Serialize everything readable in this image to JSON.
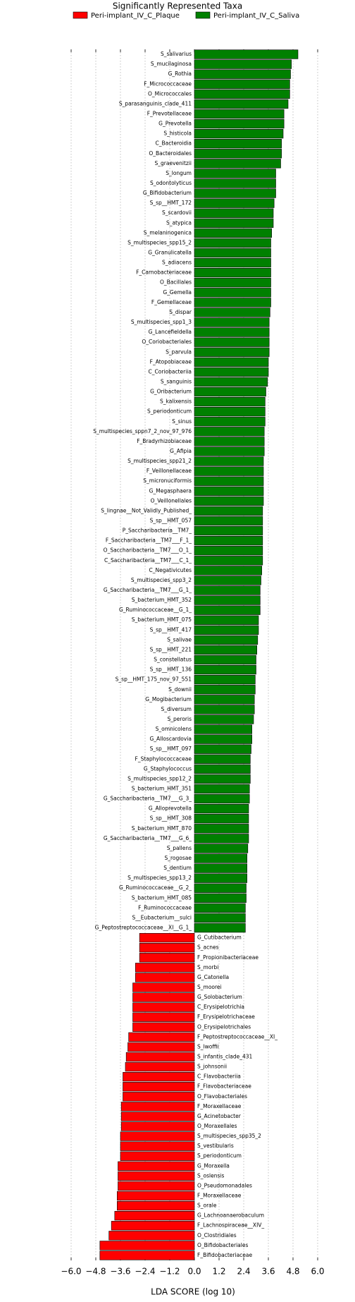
{
  "chart_data": {
    "type": "bar",
    "orientation": "horizontal",
    "title": "Significantly Represented Taxa",
    "x_label": "LDA SCORE (log 10)",
    "xlim": [
      -6.0,
      6.0
    ],
    "xticks": [
      {
        "value": -6.0,
        "label": "−6.0"
      },
      {
        "value": -4.8,
        "label": "−4.8"
      },
      {
        "value": -3.6,
        "label": "−3.6"
      },
      {
        "value": -2.4,
        "label": "−2.4"
      },
      {
        "value": -1.2,
        "label": "−1.2"
      },
      {
        "value": 0,
        "label": "0.0"
      },
      {
        "value": 1.2,
        "label": "1.2"
      },
      {
        "value": 2.4,
        "label": "2.4"
      },
      {
        "value": 3.6,
        "label": "3.6"
      },
      {
        "value": 4.8,
        "label": "4.8"
      },
      {
        "value": 6.0,
        "label": "6.0"
      }
    ],
    "grid": true,
    "legend": "top",
    "series": [
      {
        "name": "Peri-implant_IV_C_Plaque",
        "color": "#ff0000",
        "categories": [
          "G_Cutibacterium",
          "S_acnes",
          "F_Propionibacteriaceae",
          "S_morbi",
          "G_Catonella",
          "S_moorei",
          "G_Solobacterium",
          "C_Erysipelotrichia",
          "F_Erysipelotrichaceae",
          "O_Erysipelotrichales",
          "F_Peptostreptococcaceae__XI_",
          "S_lwoffii",
          "S_infantis_clade_431",
          "S_johnsonii",
          "C_Flavobacteriia",
          "F_Flavobacteriaceae",
          "O_Flavobacteriales",
          "F_Moraxellaceae",
          "G_Acinetobacter",
          "O_Moraxellales",
          "S_multispecies_spp35_2",
          "S_vestibularis",
          "S_periodonticum",
          "G_Moraxella",
          "S_oslensis",
          "O_Pseudomonadales",
          "F_Moraxellaceae",
          "S_orale",
          "G_Lachnoanaerobaculum",
          "F_Lachnospiraceae__XIV_",
          "O_Clostridiales",
          "O_Bifidobacteriales",
          "F_Bifidobacteriaceae"
        ],
        "values": [
          -2.67,
          -2.67,
          -2.67,
          -2.87,
          -2.87,
          -3.0,
          -3.0,
          -3.0,
          -3.0,
          -3.0,
          -3.2,
          -3.24,
          -3.32,
          -3.36,
          -3.48,
          -3.48,
          -3.48,
          -3.56,
          -3.56,
          -3.56,
          -3.6,
          -3.6,
          -3.6,
          -3.72,
          -3.72,
          -3.72,
          -3.76,
          -3.76,
          -3.88,
          -4.04,
          -4.16,
          -4.6,
          -4.6
        ]
      },
      {
        "name": "Peri-implant_IV_C_Saliva",
        "color": "#008000",
        "categories": [
          "S_salivarius",
          "S_mucilaginosa",
          "G_Rothia",
          "F_Micrococcaceae",
          "O_Micrococcales",
          "S_parasanguinis_clade_411",
          "F_Prevotellaceae",
          "G_Prevotella",
          "S_histicola",
          "C_Bacteroidia",
          "O_Bacteroidales",
          "S_graevenitzii",
          "S_longum",
          "S_odontolyticus",
          "G_Bifidobacterium",
          "S_sp__HMT_172",
          "S_scardovii",
          "S_atypica",
          "S_melaninogenica",
          "S_multispecies_spp15_2",
          "G_Granulicatella",
          "S_adiacens",
          "F_Carnobacteriaceae",
          "O_Bacillales",
          "G_Gemella",
          "F_Gemellaceae",
          "S_dispar",
          "S_multispecies_spp1_3",
          "G_Lancefieldella",
          "O_Coriobacteriales",
          "S_parvula",
          "F_Atopobiaceae",
          "C_Coriobacteriia",
          "S_sanguinis",
          "G_Oribacterium",
          "S_kalixensis",
          "S_periodonticum",
          "S_sinus",
          "S_multispecies_sppn7_2_nov_97_976",
          "F_Bradyrhizobiaceae",
          "G_Afipia",
          "S_multispecies_spp21_2",
          "F_Veillonellaceae",
          "S_micronuciformis",
          "G_Megasphaera",
          "O_Veillonellales",
          "S_lingnae__Not_Validly_Published_",
          "S_sp__HMT_057",
          "P_Saccharibacteria__TM7_",
          "F_Saccharibacteria__TM7___F_1_",
          "O_Saccharibacteria__TM7___O_1_",
          "C_Saccharibacteria__TM7___C_1_",
          "C_Negativicutes",
          "S_multispecies_spp3_2",
          "G_Saccharibacteria__TM7___G_1_",
          "S_bacterium_HMT_352",
          "G_Ruminococcaceae__G_1_",
          "S_bacterium_HMT_075",
          "S_sp__HMT_417",
          "S_salivae",
          "S_sp__HMT_221",
          "S_constellatus",
          "S_sp__HMT_136",
          "S_sp__HMT_175_nov_97_551",
          "S_downii",
          "G_Mogibacterium",
          "S_diversum",
          "S_peroris",
          "S_omnicolens",
          "G_Alloscardovia",
          "S_sp__HMT_097",
          "F_Staphylococcaceae",
          "G_Staphylococcus",
          "S_multispecies_spp12_2",
          "S_bacterium_HMT_351",
          "G_Saccharibacteria__TM7___G_3_",
          "G_Alloprevotella",
          "S_sp__HMT_308",
          "S_bacterium_HMT_870",
          "G_Saccharibacteria__TM7___G_6_",
          "S_pallens",
          "S_rogosae",
          "S_dentium",
          "S_multispecies_spp13_2",
          "G_Ruminococcaceae__G_2_",
          "S_bacterium_HMT_085",
          "F_Ruminococcaceae",
          "S__Eubacterium__sulci",
          "G_Peptostreptococcaceae__XI__G_1_"
        ],
        "values": [
          5.04,
          4.72,
          4.68,
          4.64,
          4.64,
          4.56,
          4.36,
          4.36,
          4.32,
          4.24,
          4.24,
          4.2,
          3.96,
          3.96,
          3.96,
          3.88,
          3.84,
          3.84,
          3.76,
          3.72,
          3.72,
          3.72,
          3.72,
          3.72,
          3.72,
          3.72,
          3.68,
          3.64,
          3.64,
          3.64,
          3.64,
          3.6,
          3.6,
          3.56,
          3.48,
          3.44,
          3.44,
          3.44,
          3.4,
          3.4,
          3.4,
          3.36,
          3.36,
          3.36,
          3.36,
          3.36,
          3.32,
          3.32,
          3.32,
          3.32,
          3.32,
          3.32,
          3.28,
          3.24,
          3.2,
          3.2,
          3.2,
          3.12,
          3.12,
          3.08,
          3.04,
          3.0,
          3.0,
          2.96,
          2.96,
          2.92,
          2.92,
          2.88,
          2.8,
          2.8,
          2.76,
          2.72,
          2.72,
          2.72,
          2.68,
          2.68,
          2.64,
          2.64,
          2.64,
          2.64,
          2.6,
          2.56,
          2.56,
          2.56,
          2.52,
          2.52,
          2.48,
          2.48,
          2.48
        ]
      }
    ]
  }
}
